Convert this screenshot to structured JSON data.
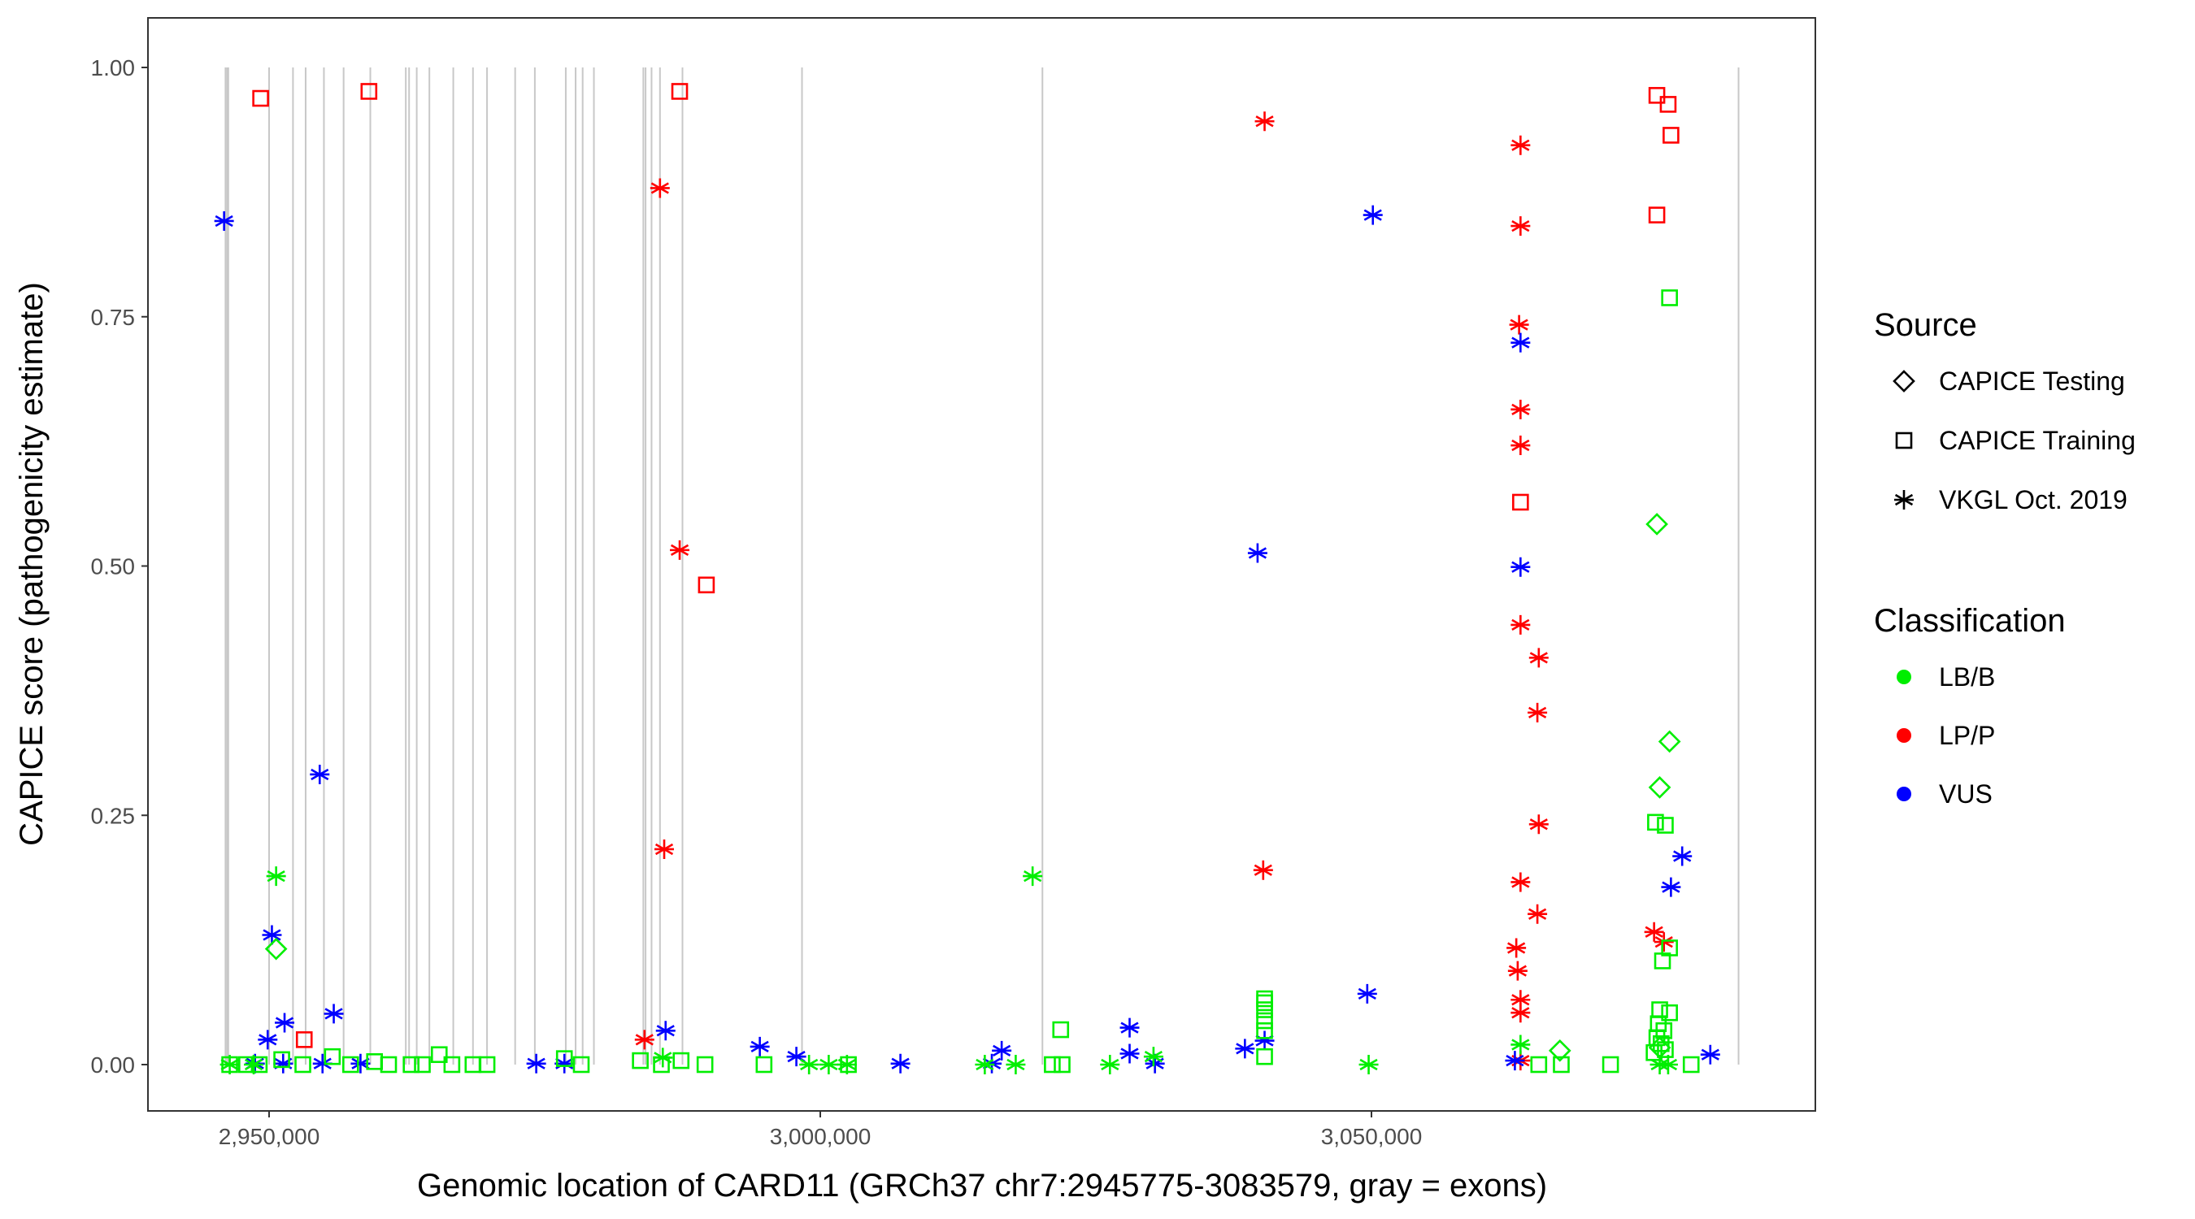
{
  "chart_data": {
    "type": "scatter",
    "title": "",
    "xlabel": "Genomic location of CARD11 (GRCh37 chr7:2945775-3083579, gray = exons)",
    "ylabel": "CAPICE score (pathogenicity estimate)",
    "xlim": [
      2943300,
      3083700
    ],
    "ylim": [
      -0.045,
      1.05
    ],
    "x_ticks": [
      2950000,
      3000000,
      3050000
    ],
    "x_tick_labels": [
      "2,950,000",
      "3,000,000",
      "3,050,000"
    ],
    "y_ticks": [
      0,
      0.25,
      0.5,
      0.75,
      1.0
    ],
    "y_tick_labels": [
      "0.00",
      "0.25",
      "0.50",
      "0.75",
      "1.00"
    ],
    "grid": false,
    "exons": [
      2946046,
      2946200,
      2946300,
      2950000,
      2952168,
      2953316,
      2954974,
      2956760,
      2959184,
      2962400,
      2962700,
      2963393,
      2964541,
      2966709,
      2968495,
      2969770,
      2972321,
      2974107,
      2976913,
      2977806,
      2978444,
      2979464,
      2983950,
      2984150,
      2984694,
      2985459,
      2987500,
      2998342,
      3020153,
      3083300
    ],
    "legend": {
      "placement": "right",
      "source_title": "Source",
      "source_entries": [
        {
          "label": "CAPICE Testing",
          "shape": "diamond"
        },
        {
          "label": "CAPICE Training",
          "shape": "square"
        },
        {
          "label": "VKGL Oct. 2019",
          "shape": "asterisk"
        }
      ],
      "class_title": "Classification",
      "class_entries": [
        {
          "label": "LB/B",
          "color": "#00ee00"
        },
        {
          "label": "LP/P",
          "color": "#ff0000"
        },
        {
          "label": "VUS",
          "color": "#0000ff"
        }
      ]
    },
    "series": [
      {
        "classification": "LP/P",
        "source": "CAPICE Training",
        "points": [
          [
            2949235,
            0.969
          ],
          [
            2959056,
            0.976
          ],
          [
            2987245,
            0.976
          ],
          [
            2989668,
            0.481
          ],
          [
            2953189,
            0.025
          ],
          [
            3063520,
            0.564
          ],
          [
            3075892,
            0.972
          ],
          [
            3076912,
            0.963
          ],
          [
            3077167,
            0.932
          ],
          [
            3075892,
            0.852
          ]
        ]
      },
      {
        "classification": "LP/P",
        "source": "VKGL Oct. 2019",
        "points": [
          [
            2985459,
            0.879
          ],
          [
            2987245,
            0.516
          ],
          [
            2985842,
            0.216
          ],
          [
            2984056,
            0.025
          ],
          [
            3040305,
            0.946
          ],
          [
            3040178,
            0.195
          ],
          [
            3063520,
            0.922
          ],
          [
            3063520,
            0.841
          ],
          [
            3063392,
            0.742
          ],
          [
            3063520,
            0.657
          ],
          [
            3063520,
            0.621
          ],
          [
            3063520,
            0.441
          ],
          [
            3065178,
            0.408
          ],
          [
            3065051,
            0.353
          ],
          [
            3065178,
            0.241
          ],
          [
            3063520,
            0.183
          ],
          [
            3065051,
            0.151
          ],
          [
            3063137,
            0.117
          ],
          [
            3063265,
            0.094
          ],
          [
            3063520,
            0.065
          ],
          [
            3063520,
            0.052
          ],
          [
            3063520,
            0.004
          ],
          [
            3075637,
            0.133
          ],
          [
            3076530,
            0.123
          ]
        ]
      },
      {
        "classification": "VUS",
        "source": "VKGL Oct. 2019",
        "points": [
          [
            2945918,
            0.846
          ],
          [
            3050127,
            0.852
          ],
          [
            2954592,
            0.291
          ],
          [
            3039669,
            0.513
          ],
          [
            3063520,
            0.724
          ],
          [
            3063520,
            0.499
          ],
          [
            2950255,
            0.13
          ],
          [
            2949872,
            0.025
          ],
          [
            2951403,
            0.042
          ],
          [
            2955867,
            0.051
          ],
          [
            3049617,
            0.071
          ],
          [
            2985970,
            0.034
          ],
          [
            2994516,
            0.018
          ],
          [
            2997832,
            0.008
          ],
          [
            3007271,
            0.001
          ],
          [
            3015562,
            0.001
          ],
          [
            3016455,
            0.014
          ],
          [
            3028061,
            0.037
          ],
          [
            3028061,
            0.011
          ],
          [
            3030357,
            0.001
          ],
          [
            3038520,
            0.016
          ],
          [
            3040305,
            0.024
          ],
          [
            3078186,
            0.209
          ],
          [
            3077167,
            0.178
          ],
          [
            3080738,
            0.01
          ],
          [
            3063010,
            0.004
          ],
          [
            2948724,
            0.001
          ],
          [
            2951276,
            0.001
          ],
          [
            2954847,
            0.001
          ],
          [
            2958291,
            0.001
          ],
          [
            2974235,
            0.001
          ],
          [
            2976786,
            0.001
          ]
        ]
      },
      {
        "classification": "LB/B",
        "source": "VKGL Oct. 2019",
        "points": [
          [
            2950638,
            0.189
          ],
          [
            3019260,
            0.189
          ],
          [
            2946429,
            0.0
          ],
          [
            2948600,
            0.0
          ],
          [
            2985714,
            0.007
          ],
          [
            2998980,
            0.0
          ],
          [
            3000765,
            0.0
          ],
          [
            3002423,
            0.0
          ],
          [
            3014923,
            0.0
          ],
          [
            3017729,
            0.0
          ],
          [
            3026275,
            0.0
          ],
          [
            3030229,
            0.008
          ],
          [
            3049745,
            0.0
          ],
          [
            3063520,
            0.02
          ],
          [
            3076147,
            0.0
          ],
          [
            3076912,
            0.0
          ]
        ]
      },
      {
        "classification": "LB/B",
        "source": "CAPICE Testing",
        "points": [
          [
            2950638,
            0.116
          ],
          [
            3075892,
            0.542
          ],
          [
            3077040,
            0.324
          ],
          [
            3076147,
            0.278
          ],
          [
            3067092,
            0.014
          ],
          [
            3076147,
            0.017
          ]
        ]
      },
      {
        "classification": "LB/B",
        "source": "CAPICE Training",
        "points": [
          [
            3077040,
            0.769
          ],
          [
            3075765,
            0.243
          ],
          [
            3076657,
            0.24
          ],
          [
            3077040,
            0.117
          ],
          [
            3076402,
            0.104
          ],
          [
            3040305,
            0.066
          ],
          [
            3040305,
            0.062
          ],
          [
            3040305,
            0.055
          ],
          [
            3040305,
            0.044
          ],
          [
            3040305,
            0.034
          ],
          [
            3040305,
            0.008
          ],
          [
            3021811,
            0.035
          ],
          [
            3021046,
            0.0
          ],
          [
            3021939,
            0.0
          ],
          [
            3076147,
            0.055
          ],
          [
            3077040,
            0.052
          ],
          [
            3076020,
            0.041
          ],
          [
            3076530,
            0.034
          ],
          [
            3075892,
            0.027
          ],
          [
            3076275,
            0.021
          ],
          [
            3076657,
            0.015
          ],
          [
            3075637,
            0.012
          ],
          [
            3065178,
            0.0
          ],
          [
            3067219,
            0.0
          ],
          [
            3071688,
            0.0
          ],
          [
            3079000,
            0.0
          ],
          [
            2946429,
            0.0
          ],
          [
            2947959,
            0.0
          ],
          [
            2949107,
            0.0
          ],
          [
            2951148,
            0.005
          ],
          [
            2953061,
            0.0
          ],
          [
            2955740,
            0.008
          ],
          [
            2957398,
            0.0
          ],
          [
            2959566,
            0.003
          ],
          [
            2960842,
            0.0
          ],
          [
            2962883,
            0.0
          ],
          [
            2963903,
            0.0
          ],
          [
            2965434,
            0.01
          ],
          [
            2966582,
            0.0
          ],
          [
            2968495,
            0.0
          ],
          [
            2969770,
            0.0
          ],
          [
            2976786,
            0.006
          ],
          [
            2978317,
            0.0
          ],
          [
            2983674,
            0.004
          ],
          [
            2985587,
            0.0
          ],
          [
            2987372,
            0.004
          ],
          [
            2989541,
            0.0
          ],
          [
            2994898,
            0.0
          ],
          [
            3002551,
            0.0
          ]
        ]
      }
    ]
  }
}
